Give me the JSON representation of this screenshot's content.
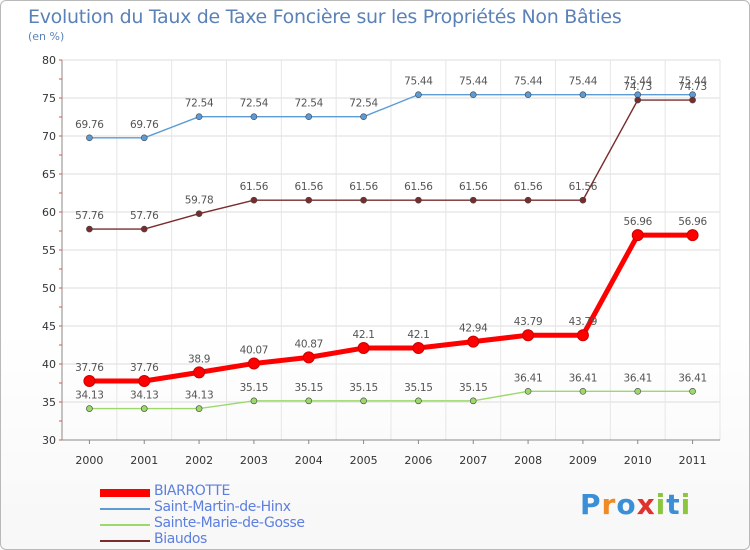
{
  "chart_data": {
    "type": "line",
    "title": "Evolution du Taux de Taxe Foncière sur les Propriétés Non Bâties",
    "unit_label": "(en %)",
    "xlabel": "",
    "ylabel": "",
    "x": [
      "2000",
      "2001",
      "2002",
      "2003",
      "2004",
      "2005",
      "2006",
      "2007",
      "2008",
      "2009",
      "2010",
      "2011"
    ],
    "ylim": [
      30,
      80
    ],
    "yticks": [
      "30",
      "35",
      "40",
      "45",
      "50",
      "55",
      "60",
      "65",
      "70",
      "75",
      "80"
    ],
    "grid": true,
    "series": [
      {
        "name": "Saint-Martin-de-Hinx",
        "color": "#5d9bd4",
        "values": [
          69.76,
          69.76,
          72.54,
          72.54,
          72.54,
          72.54,
          75.44,
          75.44,
          75.44,
          75.44,
          75.44,
          75.44
        ],
        "labels": [
          "69.76",
          "69.76",
          "72.54",
          "72.54",
          "72.54",
          "72.54",
          "75.44",
          "75.44",
          "75.44",
          "75.44",
          "75.44",
          "75.44"
        ]
      },
      {
        "name": "Biaudos",
        "color": "#7a2c2c",
        "values": [
          57.76,
          57.76,
          59.78,
          61.56,
          61.56,
          61.56,
          61.56,
          61.56,
          61.56,
          61.56,
          74.73,
          74.73
        ],
        "labels": [
          "57.76",
          "57.76",
          "59.78",
          "61.56",
          "61.56",
          "61.56",
          "61.56",
          "61.56",
          "61.56",
          "61.56",
          "74.73",
          "74.73"
        ]
      },
      {
        "name": "BIARROTTE",
        "color": "#ff0000",
        "values": [
          37.76,
          37.76,
          38.9,
          40.07,
          40.87,
          42.1,
          42.1,
          42.94,
          43.79,
          43.79,
          56.96,
          56.96
        ],
        "labels": [
          "37.76",
          "37.76",
          "38.9",
          "40.07",
          "40.87",
          "42.1",
          "42.1",
          "42.94",
          "43.79",
          "43.79",
          "56.96",
          "56.96"
        ]
      },
      {
        "name": "Sainte-Marie-de-Gosse",
        "color": "#9cd96a",
        "values": [
          34.13,
          34.13,
          34.13,
          35.15,
          35.15,
          35.15,
          35.15,
          35.15,
          36.41,
          36.41,
          36.41,
          36.41
        ],
        "labels": [
          "34.13",
          "34.13",
          "34.13",
          "35.15",
          "35.15",
          "35.15",
          "35.15",
          "35.15",
          "36.41",
          "36.41",
          "36.41",
          "36.41"
        ]
      }
    ],
    "legend": [
      {
        "name": "BIARROTTE",
        "color": "#ff0000",
        "bold": true
      },
      {
        "name": "Saint-Martin-de-Hinx",
        "color": "#5d9bd4",
        "bold": false
      },
      {
        "name": "Sainte-Marie-de-Gosse",
        "color": "#9cd96a",
        "bold": false
      },
      {
        "name": "Biaudos",
        "color": "#7a2c2c",
        "bold": false
      }
    ]
  },
  "logo": {
    "text": "Proxiti",
    "letters": [
      "P",
      "r",
      "o",
      "x",
      "i",
      "t",
      "i"
    ],
    "colors": [
      "#3a8fd6",
      "#f08a24",
      "#3a8fd6",
      "#e0332e",
      "#8cc63f",
      "#3a8fd6",
      "#8cc63f"
    ]
  }
}
